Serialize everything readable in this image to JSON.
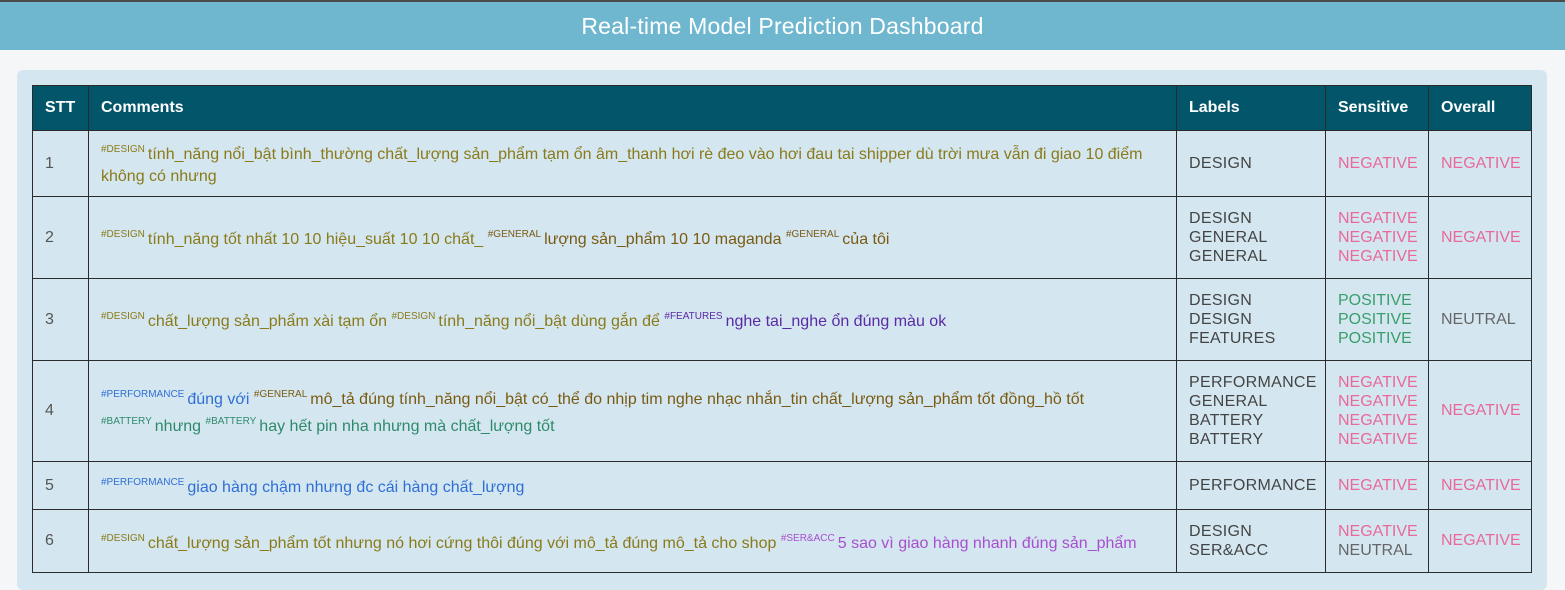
{
  "header": {
    "title": "Real-time Model Prediction Dashboard"
  },
  "table": {
    "columns": [
      "STT",
      "Comments",
      "Labels",
      "Sensitive",
      "Overall"
    ],
    "rows": [
      {
        "stt": "1",
        "segments": [
          {
            "tag": "#DESIGN",
            "cat": "DESIGN",
            "text": "tính_năng nổi_bật bình_thường chất_lượng sản_phẩm tạm ổn âm_thanh hơi rè đeo vào hơi đau tai shipper dù trời mưa vẫn đi giao 10 điểm không có nhưng"
          }
        ],
        "labels": [
          "DESIGN"
        ],
        "sensitive": [
          "NEGATIVE"
        ],
        "overall": "NEGATIVE"
      },
      {
        "stt": "2",
        "segments": [
          {
            "tag": "#DESIGN",
            "cat": "DESIGN",
            "text": "tính_năng tốt nhất 10 10 hiệu_suất 10 10 chất_"
          },
          {
            "tag": "#GENERAL",
            "cat": "GENERAL",
            "text": "lượng sản_phẩm 10 10 maganda"
          },
          {
            "tag": "#GENERAL",
            "cat": "GENERAL",
            "text": "của tôi"
          }
        ],
        "labels": [
          "DESIGN",
          "GENERAL",
          "GENERAL"
        ],
        "sensitive": [
          "NEGATIVE",
          "NEGATIVE",
          "NEGATIVE"
        ],
        "overall": "NEGATIVE"
      },
      {
        "stt": "3",
        "segments": [
          {
            "tag": "#DESIGN",
            "cat": "DESIGN",
            "text": "chất_lượng sản_phẩm xài tạm ổn"
          },
          {
            "tag": "#DESIGN",
            "cat": "DESIGN",
            "text": "tính_năng nổi_bật dùng gắn để"
          },
          {
            "tag": "#FEATURES",
            "cat": "FEATURES",
            "text": "nghe tai_nghe ổn đúng màu ok"
          }
        ],
        "labels": [
          "DESIGN",
          "DESIGN",
          "FEATURES"
        ],
        "sensitive": [
          "POSITIVE",
          "POSITIVE",
          "POSITIVE"
        ],
        "overall": "NEUTRAL"
      },
      {
        "stt": "4",
        "segments": [
          {
            "tag": "#PERFORMANCE",
            "cat": "PERFORMANCE",
            "text": "đúng với"
          },
          {
            "tag": "#GENERAL",
            "cat": "GENERAL",
            "text": "mô_tả đúng tính_năng nổi_bật có_thể đo nhịp tim nghe nhạc nhắn_tin chất_lượng sản_phẩm tốt đồng_hồ tốt"
          },
          {
            "tag": "#BATTERY",
            "cat": "BATTERY",
            "text": "nhưng"
          },
          {
            "tag": "#BATTERY",
            "cat": "BATTERY",
            "text": "hay hết pin nha nhưng mà chất_lượng tốt"
          }
        ],
        "labels": [
          "PERFORMANCE",
          "GENERAL",
          "BATTERY",
          "BATTERY"
        ],
        "sensitive": [
          "NEGATIVE",
          "NEGATIVE",
          "NEGATIVE",
          "NEGATIVE"
        ],
        "overall": "NEGATIVE"
      },
      {
        "stt": "5",
        "segments": [
          {
            "tag": "#PERFORMANCE",
            "cat": "PERFORMANCE",
            "text": "giao hàng chậm nhưng đc cái hàng chất_lượng"
          }
        ],
        "labels": [
          "PERFORMANCE"
        ],
        "sensitive": [
          "NEGATIVE"
        ],
        "overall": "NEGATIVE"
      },
      {
        "stt": "6",
        "segments": [
          {
            "tag": "#DESIGN",
            "cat": "DESIGN",
            "text": "chất_lượng sản_phẩm tốt nhưng nó hơi cứng thôi đúng với mô_tả đúng mô_tả cho shop"
          },
          {
            "tag": "#SER&ACC",
            "cat": "SER",
            "text": "5 sao vì giao hàng nhanh đúng sản_phẩm"
          }
        ],
        "labels": [
          "DESIGN",
          "SER&ACC"
        ],
        "sensitive": [
          "NEGATIVE",
          "NEUTRAL"
        ],
        "overall": "NEGATIVE"
      }
    ]
  },
  "colors": {
    "header_bg": "#6fb7cf",
    "table_header_bg": "#03566a",
    "cell_bg": "#d4e7f0",
    "negative": "#e8699a",
    "positive": "#3a9e6a",
    "neutral": "#666666"
  }
}
